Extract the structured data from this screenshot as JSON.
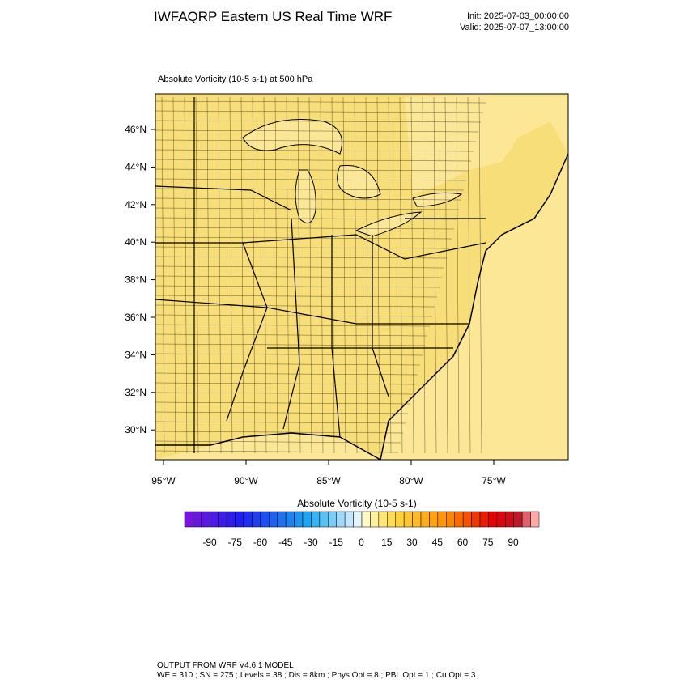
{
  "header": {
    "title": "IWFAQRP Eastern US Real Time WRF",
    "init": "Init: 2025-07-03_00:00:00",
    "valid": "Valid: 2025-07-07_13:00:00"
  },
  "map": {
    "field_label": "Absolute Vorticity   (10-5 s-1)     at   500 hPa",
    "lat_labels": [
      "46°N",
      "44°N",
      "42°N",
      "40°N",
      "38°N",
      "36°N",
      "34°N",
      "32°N",
      "30°N"
    ],
    "lon_labels": [
      "95°W",
      "90°W",
      "85°W",
      "80°W",
      "75°W"
    ]
  },
  "colorbar": {
    "title": "Absolute Vorticity  (10-5 s-1)",
    "labels": [
      -90,
      -75,
      -60,
      -45,
      -30,
      -15,
      0,
      15,
      30,
      45,
      60,
      75,
      90
    ]
  },
  "footer": {
    "line1": "OUTPUT FROM WRF V4.6.1 MODEL",
    "line2": "WE = 310 ; SN = 275 ; Levels = 38 ; Dis = 8km ; Phys Opt = 8 ; PBL Opt = 1 ; Cu Opt = 3"
  }
}
